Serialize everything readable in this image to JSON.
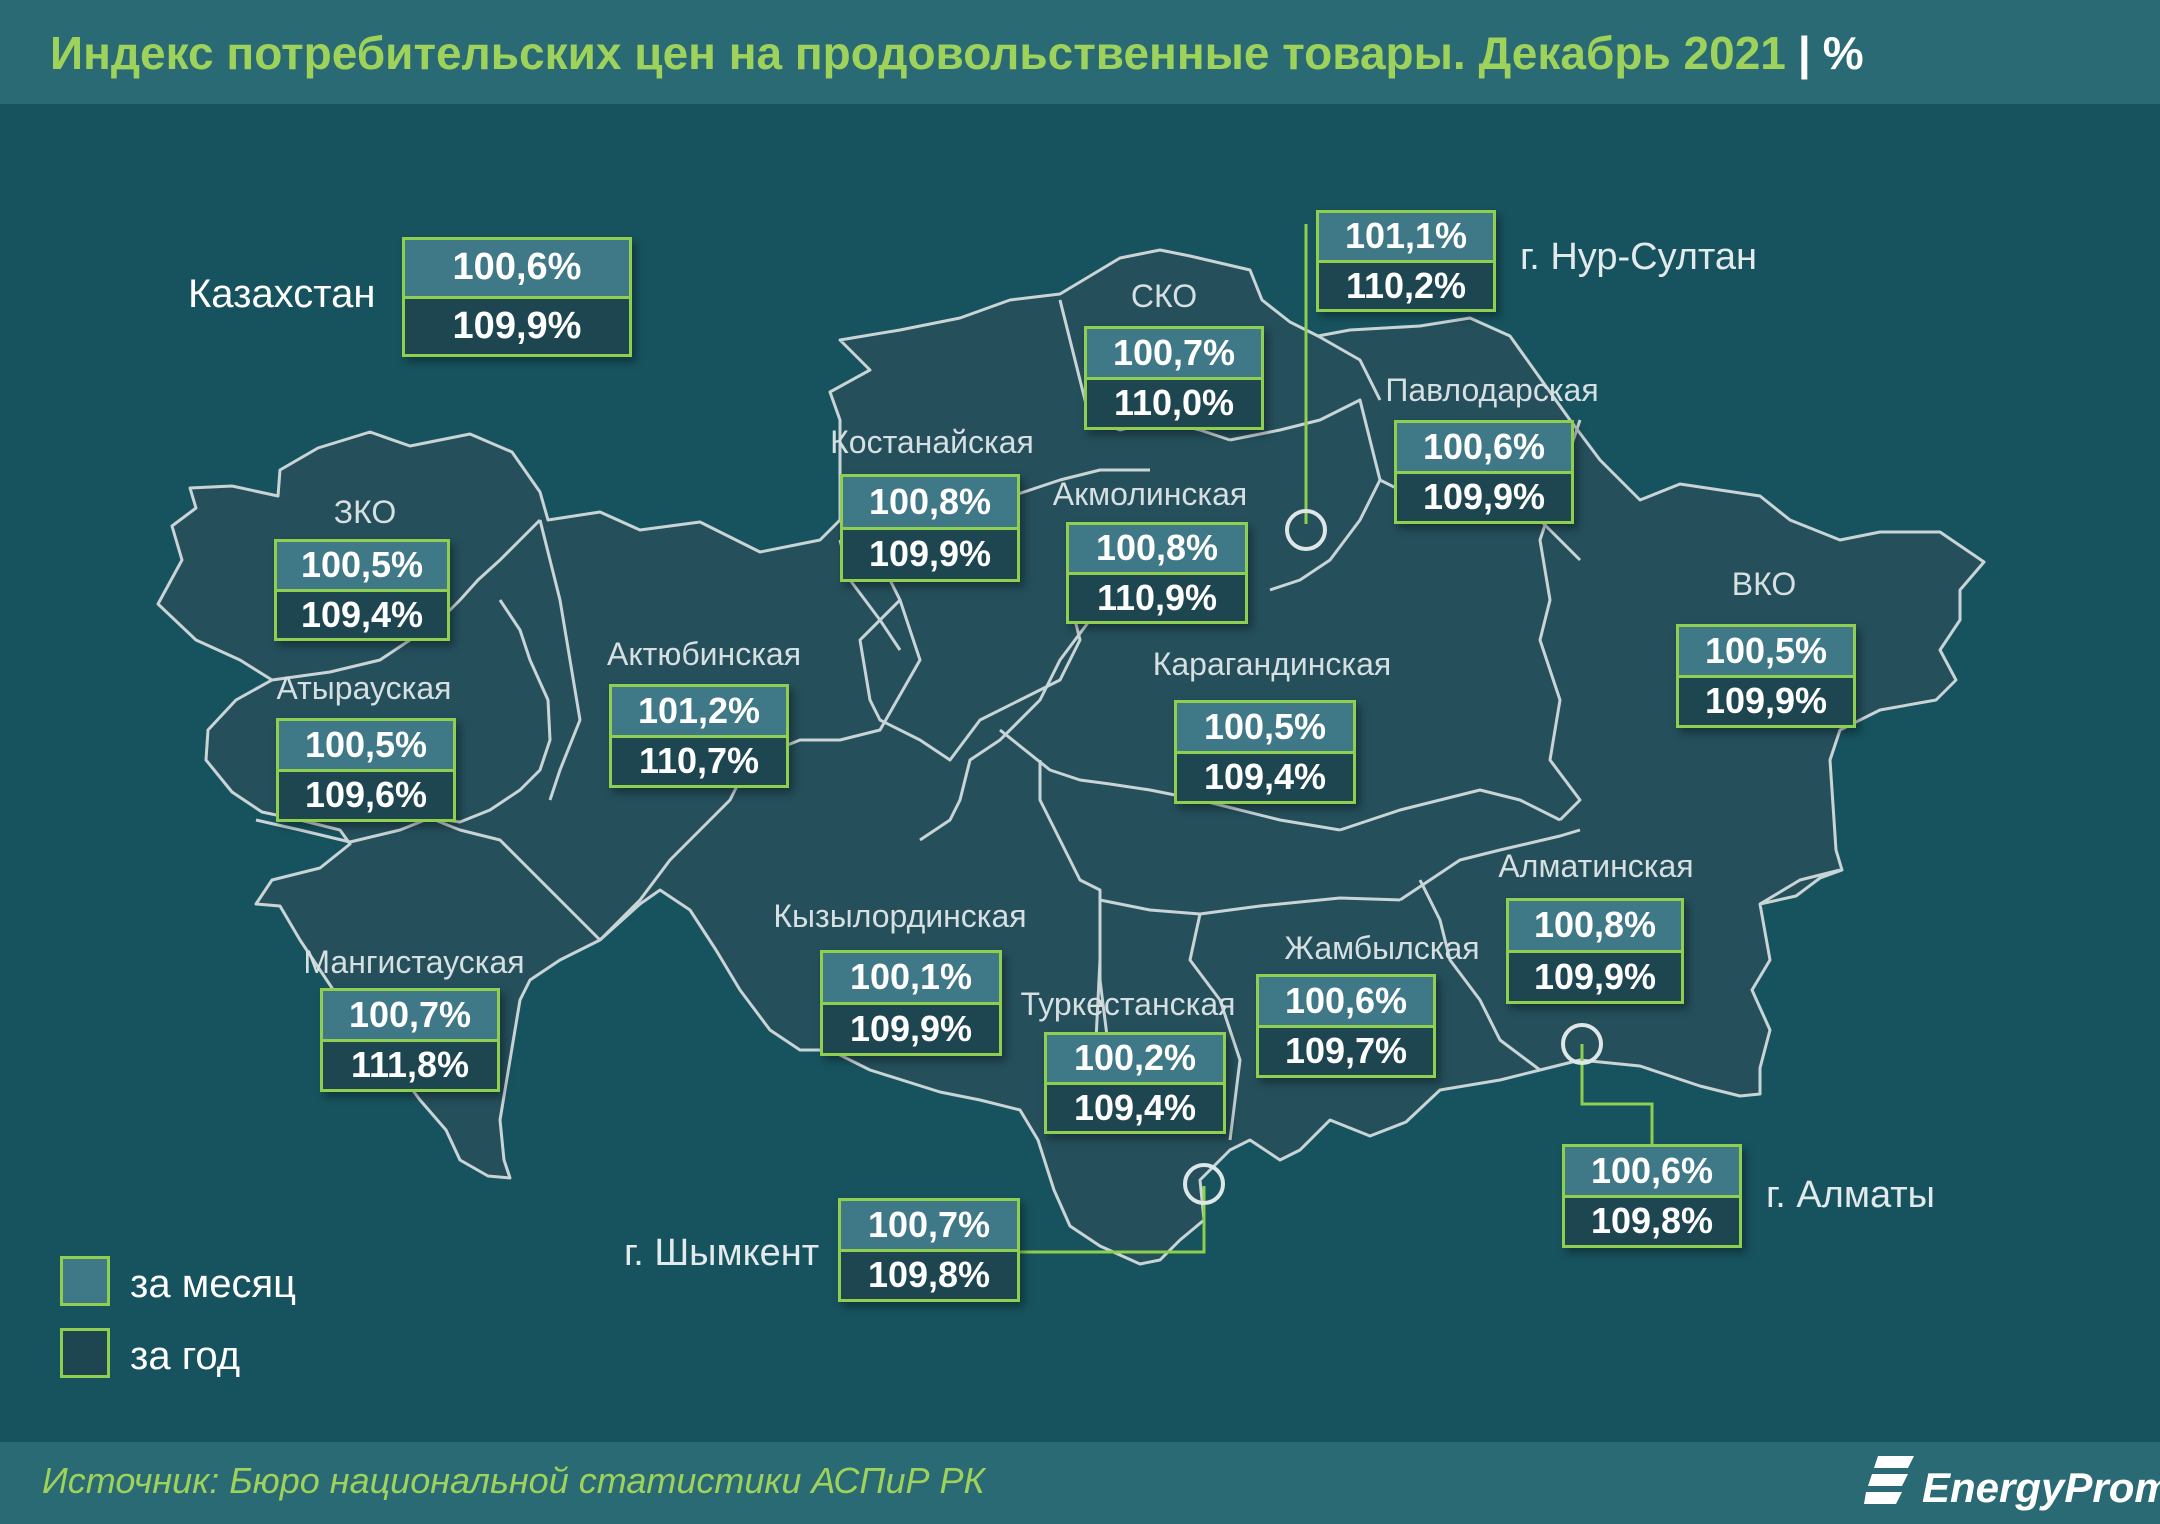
{
  "title": {
    "main": "Индекс потребительских цен на продовольственные товары. Декабрь 2021",
    "separator": "|",
    "unit": "%"
  },
  "kazakhstan": {
    "label": "Казахстан",
    "month": "100,6%",
    "year": "109,9%"
  },
  "regions": {
    "zko": {
      "label": "ЗКО",
      "month": "100,5%",
      "year": "109,4%"
    },
    "atyrau": {
      "label": "Атырауская",
      "month": "100,5%",
      "year": "109,6%"
    },
    "mangystau": {
      "label": "Мангистауская",
      "month": "100,7%",
      "year": "111,8%"
    },
    "aktobe": {
      "label": "Актюбинская",
      "month": "101,2%",
      "year": "110,7%"
    },
    "kostanay": {
      "label": "Костанайская",
      "month": "100,8%",
      "year": "109,9%"
    },
    "sko": {
      "label": "СКО",
      "month": "100,7%",
      "year": "110,0%"
    },
    "akmola": {
      "label": "Акмолинская",
      "month": "100,8%",
      "year": "110,9%"
    },
    "pavlodar": {
      "label": "Павлодарская",
      "month": "100,6%",
      "year": "109,9%"
    },
    "vko": {
      "label": "ВКО",
      "month": "100,5%",
      "year": "109,9%"
    },
    "karaganda": {
      "label": "Карагандинская",
      "month": "100,5%",
      "year": "109,4%"
    },
    "kyzylorda": {
      "label": "Кызылординская",
      "month": "100,1%",
      "year": "109,9%"
    },
    "turkestan": {
      "label": "Туркестанская",
      "month": "100,2%",
      "year": "109,4%"
    },
    "zhambyl": {
      "label": "Жамбылская",
      "month": "100,6%",
      "year": "109,7%"
    },
    "almaty_reg": {
      "label": "Алматинская",
      "month": "100,8%",
      "year": "109,9%"
    }
  },
  "cities": {
    "nur_sultan": {
      "label": "г. Нур-Султан",
      "month": "101,1%",
      "year": "110,2%"
    },
    "almaty": {
      "label": "г. Алматы",
      "month": "100,6%",
      "year": "109,8%"
    },
    "shymkent": {
      "label": "г. Шымкент",
      "month": "100,7%",
      "year": "109,8%"
    }
  },
  "legend": {
    "month": "за месяц",
    "year": "за год"
  },
  "colors": {
    "month_fill": "#3f7887",
    "year_fill": "#1d4651",
    "accent_green": "#8ecf4f",
    "title_green": "#9fd25a",
    "background": "#17535e"
  },
  "source": "Источник: Бюро национальной статистики АСПиР РК",
  "logo": {
    "text": "EnergyProm",
    "icon": "energyprom-logo-icon"
  }
}
